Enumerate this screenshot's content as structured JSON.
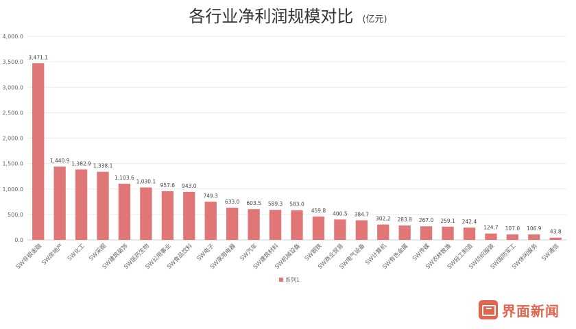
{
  "chart_data": {
    "type": "bar",
    "title": "各行业净利润规模对比",
    "title_unit": "(亿元)",
    "categories": [
      "SW非银金融",
      "SW房地产",
      "SW化工",
      "SW采掘",
      "SW建筑装饰",
      "SW医药生物",
      "SW公用事业",
      "SW食品饮料",
      "SW电子",
      "SW家用电器",
      "SW汽车",
      "SW建筑材料",
      "SW机械设备",
      "SW钢铁",
      "SW商业贸易",
      "SW电气设备",
      "SW计算机",
      "SW有色金属",
      "SW传媒",
      "SW农林牧渔",
      "SW轻工制造",
      "SW纺织服装",
      "SW国防军工",
      "SW休闲服务",
      "SW通信"
    ],
    "series": [
      {
        "name": "系列1",
        "values": [
          3471.1,
          1440.9,
          1382.9,
          1338.1,
          1103.6,
          1030.1,
          957.6,
          943.0,
          749.3,
          633.0,
          603.5,
          589.3,
          583.0,
          459.8,
          400.5,
          384.7,
          302.2,
          283.8,
          267.0,
          259.1,
          242.4,
          124.7,
          107.0,
          106.9,
          43.8
        ],
        "value_labels": [
          "3,471.1",
          "1,440.9",
          "1,382.9",
          "1,338.1",
          "1,103.6",
          "1,030.1",
          "957.6",
          "943.0",
          "749.3",
          "633.0",
          "603.5",
          "589.3",
          "583.0",
          "459.8",
          "400.5",
          "384.7",
          "302.2",
          "283.8",
          "267.0",
          "259.1",
          "242.4",
          "124.7",
          "107.0",
          "106.9",
          "43.8"
        ],
        "color": "#e07676"
      }
    ],
    "y_ticks": [
      "0.0",
      "500.0",
      "1,000.0",
      "1,500.0",
      "2,000.0",
      "2,500.0",
      "3,000.0",
      "3,500.0",
      "4,000.0"
    ],
    "ylim": [
      0,
      4000
    ],
    "grid": true,
    "legend_position": "bottom"
  },
  "brand": {
    "name": "界面新闻",
    "icon": "jiemian-logo-icon",
    "color": "#e4644f"
  }
}
